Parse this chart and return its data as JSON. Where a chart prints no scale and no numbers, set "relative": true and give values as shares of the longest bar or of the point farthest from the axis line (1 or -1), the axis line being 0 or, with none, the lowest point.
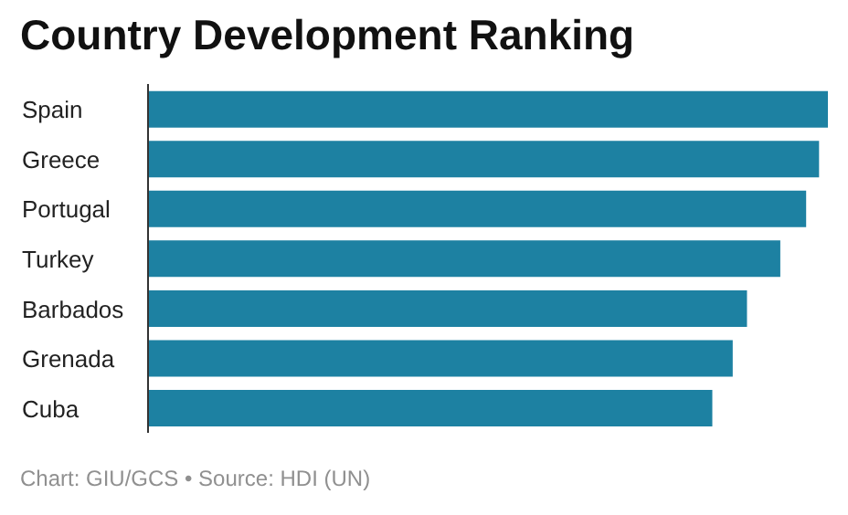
{
  "chart_data": {
    "type": "bar",
    "orientation": "horizontal",
    "relative": true,
    "title": "Country Development Ranking",
    "categories": [
      "Spain",
      "Greece",
      "Portugal",
      "Turkey",
      "Barbados",
      "Grenada",
      "Cuba"
    ],
    "values": [
      1,
      0.987,
      0.968,
      0.93,
      0.881,
      0.86,
      0.83
    ],
    "color": "#1d81a2",
    "annotations": [
      "Chart: GIU/GCS • Source: HDI (UN)"
    ]
  }
}
